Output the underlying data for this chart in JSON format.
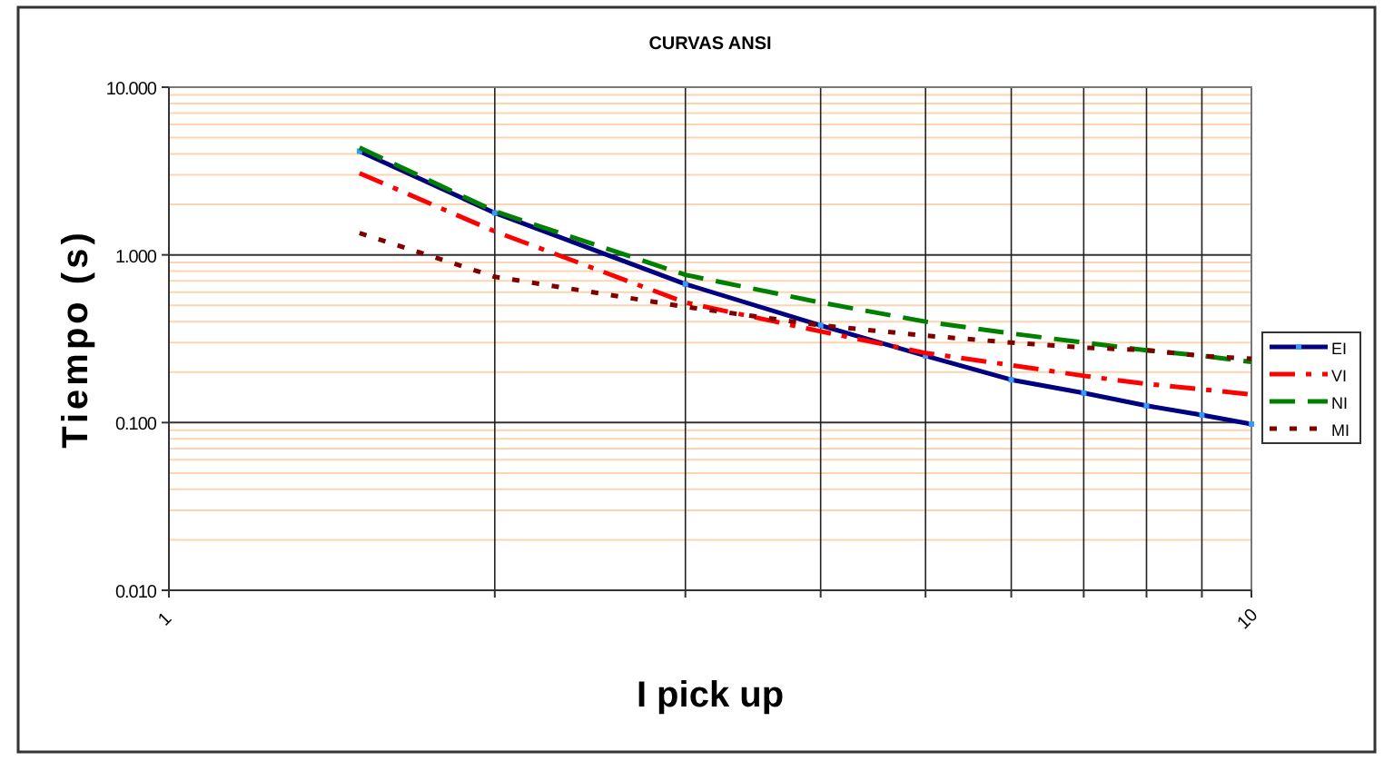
{
  "chart_data": {
    "type": "line",
    "title": "CURVAS ANSI",
    "xlabel": "I pick up",
    "ylabel": "Tiempo (s)",
    "log": "xy",
    "grid": true,
    "legend": "right",
    "marker": "none",
    "x": [
      1.5,
      2,
      3,
      4,
      5,
      6,
      7,
      8,
      9,
      10
    ],
    "xlim": [
      1,
      10
    ],
    "xticks": [
      1,
      {
        "value": 2,
        "label": null
      },
      {
        "value": 3,
        "label": null
      },
      {
        "value": 4,
        "label": null
      },
      {
        "value": 5,
        "label": null
      },
      {
        "value": 6,
        "label": null
      },
      {
        "value": 7,
        "label": null
      },
      {
        "value": 8,
        "label": null
      },
      {
        "value": 9,
        "label": null
      },
      10
    ],
    "ylim": [
      0.01,
      10
    ],
    "yticks": [
      {
        "value": 0.01,
        "label": "0.010"
      },
      {
        "value": 0.02,
        "label": null
      },
      {
        "value": 0.03,
        "label": null
      },
      {
        "value": 0.04,
        "label": null
      },
      {
        "value": 0.05,
        "label": null
      },
      {
        "value": 0.06,
        "label": null
      },
      {
        "value": 0.07,
        "label": null
      },
      {
        "value": 0.08,
        "label": null
      },
      {
        "value": 0.09,
        "label": null
      },
      {
        "value": 0.1,
        "label": "0.100"
      },
      {
        "value": 0.2,
        "label": null
      },
      {
        "value": 0.3,
        "label": null
      },
      {
        "value": 0.4,
        "label": null
      },
      {
        "value": 0.5,
        "label": null
      },
      {
        "value": 0.6,
        "label": null
      },
      {
        "value": 0.7,
        "label": null
      },
      {
        "value": 0.8,
        "label": null
      },
      {
        "value": 0.9,
        "label": null
      },
      {
        "value": 1,
        "label": "1.000"
      },
      {
        "value": 2,
        "label": null
      },
      {
        "value": 3,
        "label": null
      },
      {
        "value": 4,
        "label": null
      },
      {
        "value": 5,
        "label": null
      },
      {
        "value": 6,
        "label": null
      },
      {
        "value": 7,
        "label": null
      },
      {
        "value": 8,
        "label": null
      },
      {
        "value": 9,
        "label": null
      },
      {
        "value": 10,
        "label": "10.000"
      }
    ],
    "series": [
      {
        "name": "EI",
        "color": "#000080",
        "line_style": "solid",
        "marker": "square",
        "values": [
          4.15,
          1.78,
          0.67,
          0.38,
          0.25,
          0.18,
          0.15,
          0.126,
          0.111,
          0.098
        ]
      },
      {
        "name": "VI",
        "color": "#ff0000",
        "line_style": "dashdot",
        "values": [
          3.07,
          1.38,
          0.52,
          0.35,
          0.26,
          0.22,
          0.19,
          0.17,
          0.158,
          0.147
        ]
      },
      {
        "name": "NI",
        "color": "#008000",
        "line_style": "dashed",
        "values": [
          4.36,
          1.82,
          0.76,
          0.52,
          0.4,
          0.34,
          0.3,
          0.27,
          0.25,
          0.23
        ]
      },
      {
        "name": "MI",
        "color": "#800000",
        "line_style": "dotted",
        "values": [
          1.35,
          0.74,
          0.49,
          0.38,
          0.33,
          0.3,
          0.28,
          0.27,
          0.25,
          0.24
        ]
      }
    ]
  }
}
